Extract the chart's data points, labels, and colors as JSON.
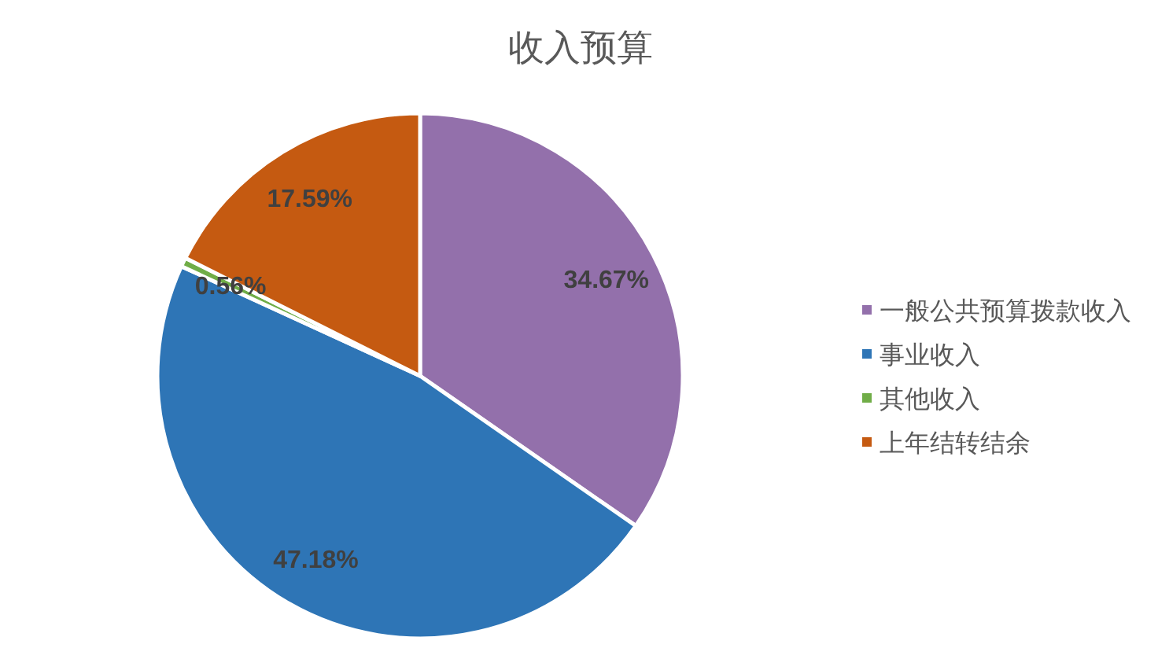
{
  "chart_data": {
    "type": "pie",
    "title": "收入预算",
    "categories": [
      "一般公共预算拨款收入",
      "事业收入",
      "其他收入",
      "上年结转结余"
    ],
    "values": [
      34.67,
      47.18,
      0.56,
      17.59
    ],
    "colors": [
      "#9370ab",
      "#2e75b6",
      "#70ad47",
      "#c55a11"
    ],
    "value_labels": [
      "34.67%",
      "47.18%",
      "0.56%",
      "17.59%"
    ],
    "legend": "right"
  }
}
